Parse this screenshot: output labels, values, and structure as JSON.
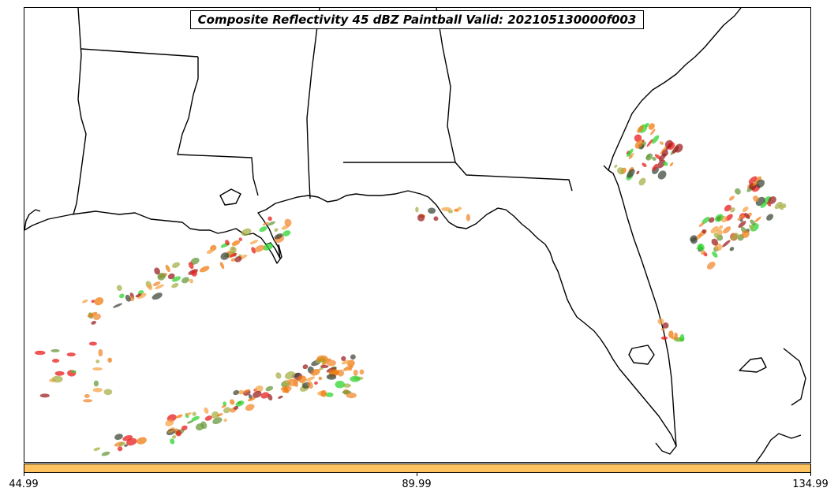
{
  "title": "Composite Reflectivity 45 dBZ Paintball Valid: 202105130000f003",
  "colorbar": {
    "color": "#fec35e",
    "ticks": [
      "44.99",
      "89.99",
      "134.99"
    ]
  },
  "colors": {
    "paint": [
      "#e81e1e",
      "#f07c12",
      "#f5a54a",
      "#2fd42f",
      "#6a9a3c",
      "#a8b048",
      "#9c2222",
      "#404a3c",
      "#f28a32"
    ],
    "coastline": "#000000"
  }
}
